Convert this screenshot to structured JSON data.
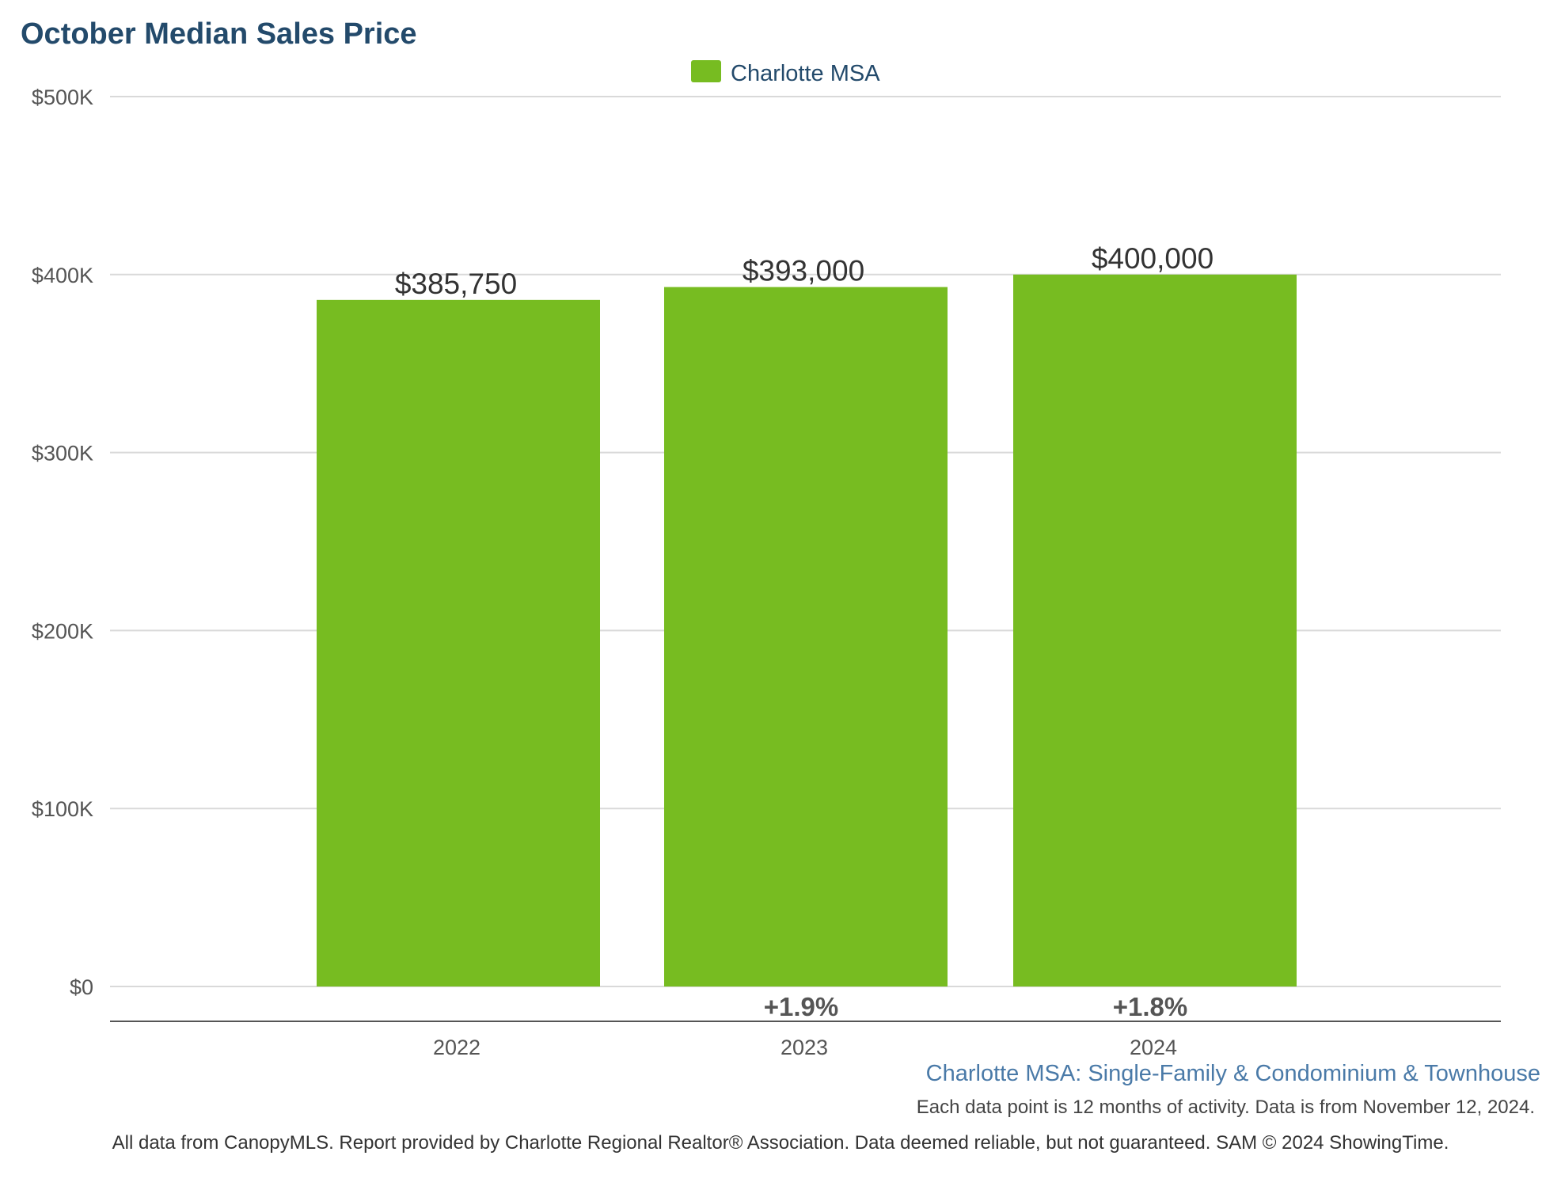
{
  "chart_data": {
    "type": "bar",
    "title": "October Median Sales Price",
    "categories": [
      "2022",
      "2023",
      "2024"
    ],
    "series": [
      {
        "name": "Charlotte MSA",
        "color": "#77bc21",
        "values": [
          385750,
          393000,
          400000
        ],
        "value_labels": [
          "$385,750",
          "$393,000",
          "$400,000"
        ]
      }
    ],
    "change_labels": [
      "",
      "+1.9%",
      "+1.8%"
    ],
    "y_ticks": [
      0,
      100000,
      200000,
      300000,
      400000,
      500000
    ],
    "y_tick_labels": [
      "$0",
      "$100K",
      "$200K",
      "$300K",
      "$400K",
      "$500K"
    ],
    "ylim": [
      0,
      500000
    ],
    "xlabel": "",
    "ylabel": "",
    "grid": true,
    "legend_position": "top-center"
  },
  "footer": {
    "subtitle": "Charlotte MSA: Single-Family & Condominium & Townhouse",
    "note": "Each data point is 12 months of activity. Data is from November 12, 2024.",
    "credit": "All data from CanopyMLS. Report provided by Charlotte Regional Realtor® Association. Data deemed reliable, but not guaranteed. SAM © 2024 ShowingTime."
  }
}
